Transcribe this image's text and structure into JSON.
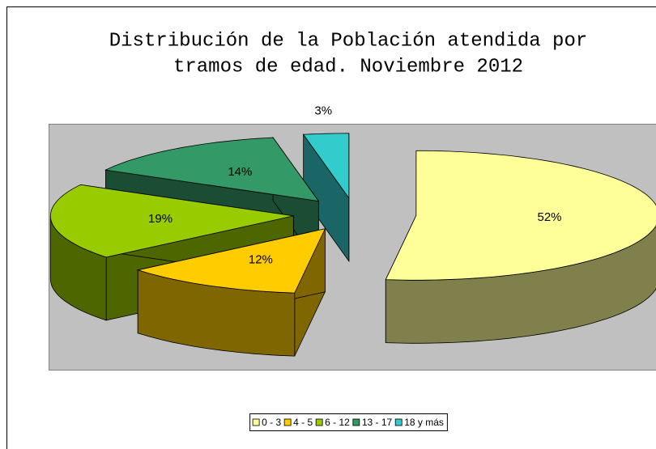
{
  "chart_data": {
    "type": "pie3d",
    "title": [
      "Distribución de la Población atendida por",
      "tramos de edad. Noviembre 2012"
    ],
    "categories": [
      "0 - 3",
      "4 - 5",
      "6 - 12",
      "13 - 17",
      "18 y más"
    ],
    "values": [
      52,
      12,
      19,
      14,
      3
    ],
    "value_labels": [
      "52%",
      "12%",
      "19%",
      "14%",
      "3%"
    ],
    "colors": [
      "#ffff99",
      "#ffcc00",
      "#99cc00",
      "#339966",
      "#33cccc"
    ],
    "legend": "bottom"
  }
}
